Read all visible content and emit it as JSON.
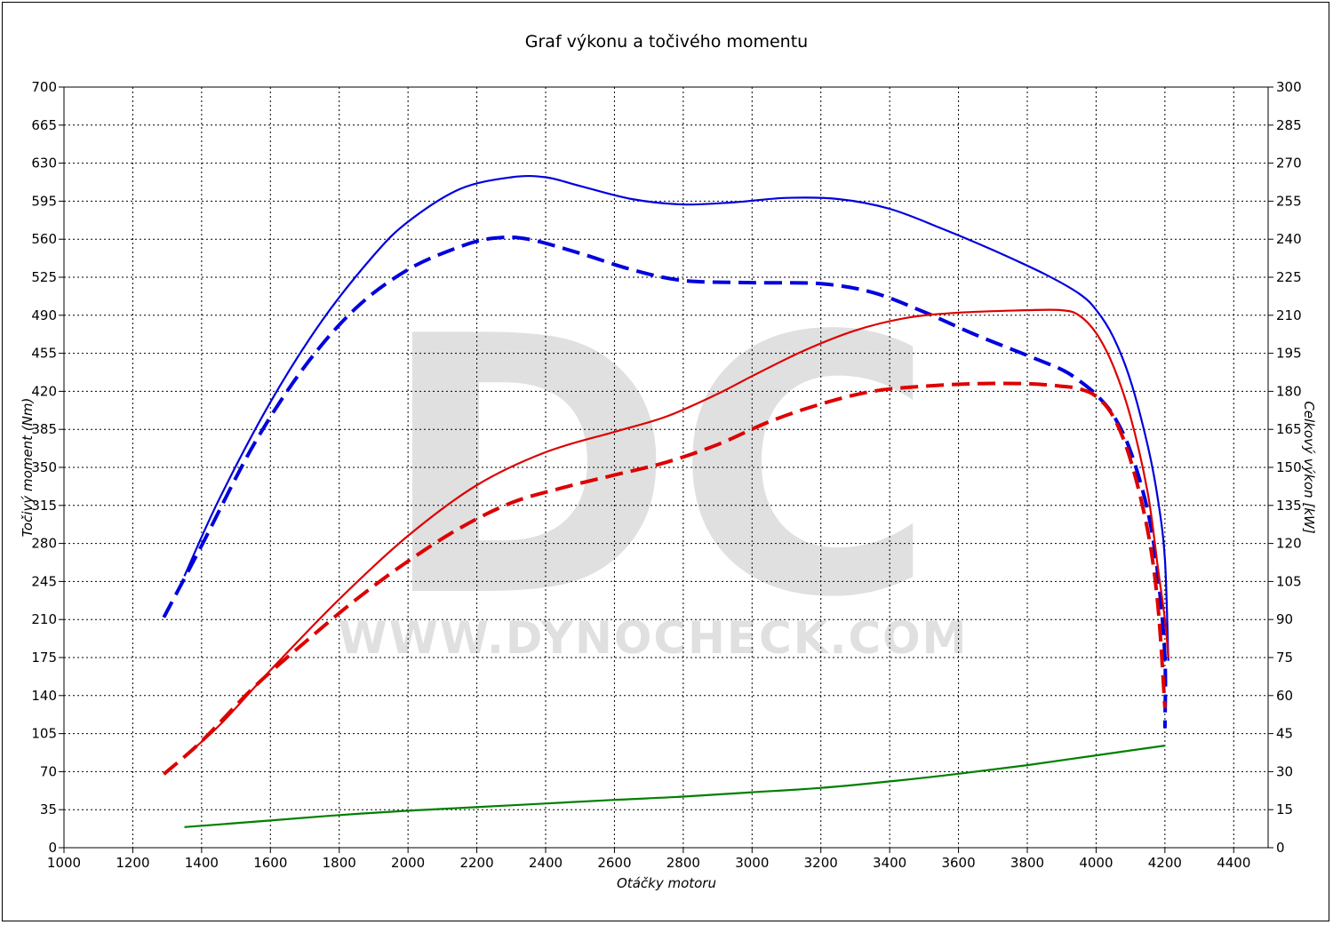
{
  "chart_data": {
    "type": "line",
    "title": "Graf výkonu a točivého momentu",
    "xlabel": "Otáčky motoru",
    "ylabel_left": "Točivý moment (Nm)",
    "ylabel_right": "Celkový výkon [kW]",
    "watermark": {
      "logo": "DC",
      "url": "WWW.DYNOCHECK.COM"
    },
    "xlim": [
      1000,
      4500
    ],
    "ylim_left": [
      0,
      700
    ],
    "ylim_right": [
      0,
      300
    ],
    "x_ticks": [
      1000,
      1200,
      1400,
      1600,
      1800,
      2000,
      2200,
      2400,
      2600,
      2800,
      3000,
      3200,
      3400,
      3600,
      3800,
      4000,
      4200,
      4400
    ],
    "y_ticks_left": [
      0,
      35,
      70,
      105,
      140,
      175,
      210,
      245,
      280,
      315,
      350,
      385,
      420,
      455,
      490,
      525,
      560,
      595,
      630,
      665,
      700
    ],
    "y_ticks_right": [
      0,
      15,
      30,
      45,
      60,
      75,
      90,
      105,
      120,
      135,
      150,
      165,
      180,
      195,
      210,
      225,
      240,
      255,
      270,
      285,
      300
    ],
    "grid": true,
    "series": [
      {
        "axis": "left",
        "color": "#0000dd",
        "style": "solid",
        "points": [
          [
            1350,
            250
          ],
          [
            1450,
            320
          ],
          [
            1600,
            410
          ],
          [
            1750,
            485
          ],
          [
            1900,
            545
          ],
          [
            2000,
            576
          ],
          [
            2150,
            606
          ],
          [
            2300,
            617
          ],
          [
            2400,
            617
          ],
          [
            2500,
            609
          ],
          [
            2650,
            597
          ],
          [
            2800,
            592
          ],
          [
            2950,
            594
          ],
          [
            3100,
            598
          ],
          [
            3250,
            597
          ],
          [
            3400,
            588
          ],
          [
            3550,
            570
          ],
          [
            3700,
            550
          ],
          [
            3850,
            528
          ],
          [
            3950,
            510
          ],
          [
            4000,
            495
          ],
          [
            4050,
            470
          ],
          [
            4100,
            430
          ],
          [
            4150,
            370
          ],
          [
            4180,
            320
          ],
          [
            4200,
            265
          ],
          [
            4210,
            172
          ]
        ]
      },
      {
        "axis": "left",
        "color": "#0000dd",
        "style": "dashed",
        "points": [
          [
            1290,
            212
          ],
          [
            1400,
            278
          ],
          [
            1550,
            370
          ],
          [
            1700,
            443
          ],
          [
            1850,
            497
          ],
          [
            2000,
            532
          ],
          [
            2150,
            553
          ],
          [
            2250,
            561
          ],
          [
            2350,
            560
          ],
          [
            2500,
            547
          ],
          [
            2650,
            532
          ],
          [
            2800,
            522
          ],
          [
            3000,
            520
          ],
          [
            3200,
            519
          ],
          [
            3350,
            511
          ],
          [
            3500,
            493
          ],
          [
            3650,
            472
          ],
          [
            3800,
            453
          ],
          [
            3900,
            440
          ],
          [
            3950,
            430
          ],
          [
            4000,
            417
          ],
          [
            4050,
            398
          ],
          [
            4100,
            365
          ],
          [
            4150,
            310
          ],
          [
            4180,
            250
          ],
          [
            4200,
            175
          ],
          [
            4200,
            110
          ]
        ]
      },
      {
        "axis": "right",
        "color": "#dd0000",
        "style": "solid",
        "points": [
          [
            1350,
            36
          ],
          [
            1450,
            48
          ],
          [
            1600,
            70
          ],
          [
            1800,
            98
          ],
          [
            2000,
            123
          ],
          [
            2200,
            143
          ],
          [
            2400,
            156
          ],
          [
            2600,
            164
          ],
          [
            2750,
            170
          ],
          [
            2900,
            179
          ],
          [
            3000,
            186
          ],
          [
            3150,
            196
          ],
          [
            3300,
            204
          ],
          [
            3450,
            209
          ],
          [
            3600,
            211
          ],
          [
            3800,
            212
          ],
          [
            3900,
            212
          ],
          [
            3950,
            210
          ],
          [
            4000,
            203
          ],
          [
            4050,
            190
          ],
          [
            4100,
            170
          ],
          [
            4150,
            140
          ],
          [
            4180,
            110
          ],
          [
            4200,
            90
          ],
          [
            4210,
            75
          ]
        ]
      },
      {
        "axis": "right",
        "color": "#dd0000",
        "style": "dashed",
        "points": [
          [
            1290,
            29
          ],
          [
            1400,
            42
          ],
          [
            1550,
            63
          ],
          [
            1700,
            81
          ],
          [
            1850,
            98
          ],
          [
            2000,
            113
          ],
          [
            2150,
            126
          ],
          [
            2300,
            136
          ],
          [
            2450,
            142
          ],
          [
            2600,
            147
          ],
          [
            2750,
            152
          ],
          [
            2900,
            159
          ],
          [
            3050,
            168
          ],
          [
            3200,
            175
          ],
          [
            3350,
            180
          ],
          [
            3500,
            182
          ],
          [
            3650,
            183
          ],
          [
            3800,
            183
          ],
          [
            3900,
            182
          ],
          [
            3950,
            181
          ],
          [
            4000,
            178
          ],
          [
            4050,
            170
          ],
          [
            4100,
            153
          ],
          [
            4150,
            125
          ],
          [
            4180,
            95
          ],
          [
            4200,
            55
          ]
        ]
      },
      {
        "axis": "left",
        "color": "#008000",
        "style": "solid",
        "points": [
          [
            1350,
            19
          ],
          [
            1600,
            25
          ],
          [
            1800,
            30
          ],
          [
            2000,
            34
          ],
          [
            2300,
            39
          ],
          [
            2600,
            44
          ],
          [
            2800,
            47
          ],
          [
            3000,
            51
          ],
          [
            3200,
            55
          ],
          [
            3400,
            61
          ],
          [
            3600,
            68
          ],
          [
            3800,
            76
          ],
          [
            4000,
            85
          ],
          [
            4200,
            94
          ]
        ]
      }
    ]
  }
}
